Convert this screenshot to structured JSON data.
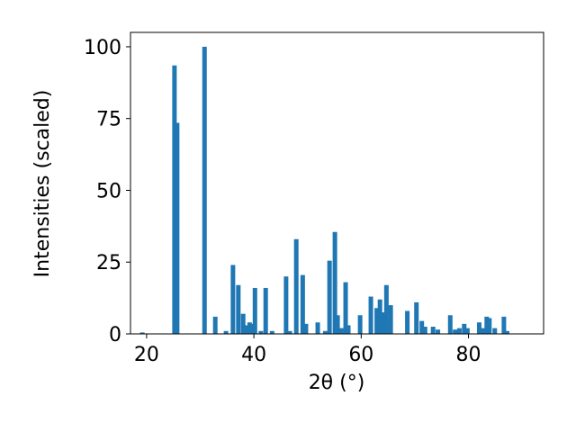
{
  "chart_data": {
    "type": "bar",
    "x": [
      19.2,
      25.2,
      25.7,
      30.8,
      32.8,
      34.8,
      36.1,
      37.1,
      38.0,
      38.5,
      39.2,
      39.7,
      40.2,
      41.3,
      42.2,
      43.4,
      46.0,
      46.7,
      47.9,
      49.1,
      49.7,
      51.9,
      53.3,
      54.1,
      55.1,
      55.6,
      56.3,
      57.1,
      57.6,
      59.8,
      61.8,
      62.9,
      63.5,
      64.0,
      64.7,
      65.5,
      68.6,
      70.3,
      71.3,
      71.9,
      73.4,
      74.3,
      76.6,
      77.5,
      78.3,
      79.2,
      79.8,
      82.0,
      82.7,
      83.4,
      83.9,
      84.9,
      86.6,
      87.2
    ],
    "values": [
      0.5,
      93.5,
      73.5,
      100,
      6,
      1,
      24,
      17,
      7,
      3,
      4,
      3.5,
      16,
      1,
      16,
      1,
      20,
      1,
      33,
      20.5,
      3.5,
      4,
      1,
      25.5,
      35.5,
      6.5,
      2,
      18,
      3,
      6.5,
      13,
      9,
      12,
      7.5,
      17,
      10,
      8,
      11,
      4.5,
      2.5,
      2.5,
      1.5,
      6.5,
      1.5,
      2,
      3.5,
      2,
      4,
      2,
      6,
      5.5,
      2,
      6,
      1
    ],
    "color": "#1f77b4",
    "xlabel": "2θ (°)",
    "ylabel": "Intensities (scaled)",
    "xlim": [
      17,
      94
    ],
    "xticks": [
      20,
      40,
      60,
      80
    ],
    "ylim": [
      0,
      105
    ],
    "yticks": [
      0,
      25,
      50,
      75,
      100
    ]
  }
}
